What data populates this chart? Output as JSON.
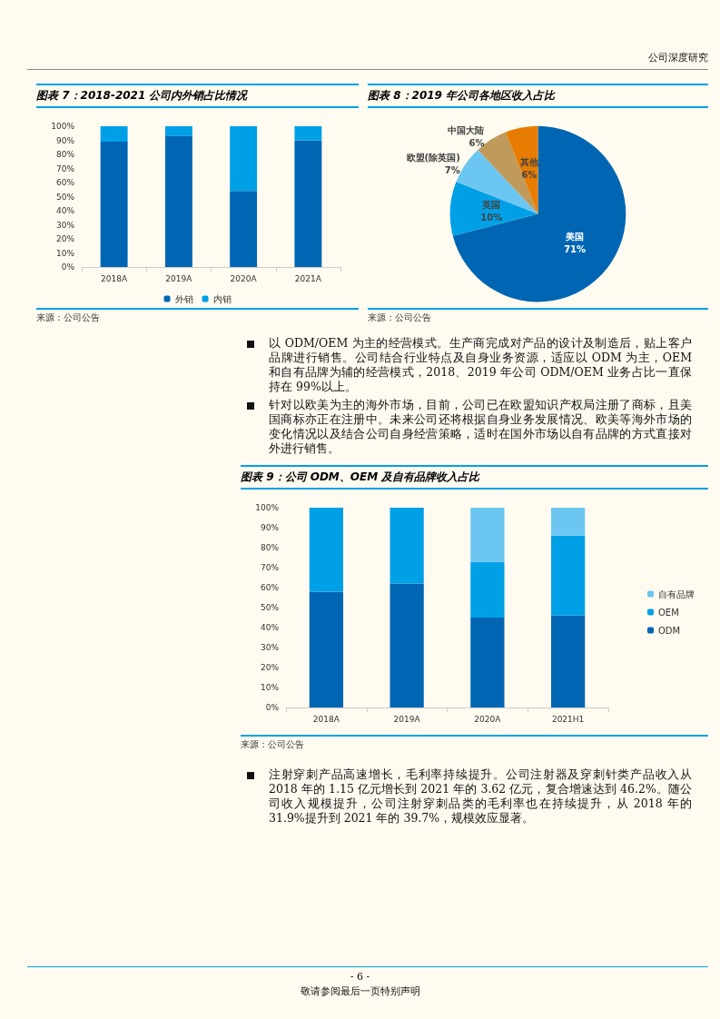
{
  "chart_data": [
    {
      "type": "bar",
      "title": "图表 7：2018-2021 公司内外销占比情况",
      "categories": [
        "2018A",
        "2019A",
        "2020A",
        "2021A"
      ],
      "stacked": true,
      "series": [
        {
          "name": "外销",
          "color": "#0066b3",
          "values": [
            89,
            93,
            54,
            90
          ]
        },
        {
          "name": "内销",
          "color": "#00a0e6",
          "values": [
            11,
            7,
            46,
            10
          ]
        }
      ],
      "ylim": [
        0,
        100
      ],
      "yticks": [
        {
          "value": 0,
          "label": "0%"
        },
        {
          "value": 10,
          "label": "10%"
        },
        {
          "value": 20,
          "label": "20%"
        },
        {
          "value": 30,
          "label": "30%"
        },
        {
          "value": 40,
          "label": "40%"
        },
        {
          "value": 50,
          "label": "50%"
        },
        {
          "value": 60,
          "label": "60%"
        },
        {
          "value": 70,
          "label": "70%"
        },
        {
          "value": 80,
          "label": "80%"
        },
        {
          "value": 90,
          "label": "90%"
        },
        {
          "value": 100,
          "label": "100%"
        }
      ],
      "grid": false,
      "legend": "bottom",
      "annotations": [
        "来源：公司公告"
      ]
    },
    {
      "type": "pie",
      "title": "图表 8：2019 年公司各地区收入占比",
      "categories": [
        "美国",
        "英国",
        "欧盟(除英国)",
        "中国大陆",
        "其他"
      ],
      "values": [
        71,
        10,
        7,
        6,
        6
      ],
      "colors": [
        "#0066b3",
        "#00a0e6",
        "#6cc6f2",
        "#c09a5a",
        "#e87c00"
      ],
      "value_labels": [
        "71%",
        "10%",
        "7%",
        "6%",
        "6%"
      ],
      "annotations": [
        "来源：公司公告"
      ]
    },
    {
      "type": "bar",
      "title": "图表 9：公司 ODM、OEM 及自有品牌收入占比",
      "categories": [
        "2018A",
        "2019A",
        "2020A",
        "2021H1"
      ],
      "stacked": true,
      "series": [
        {
          "name": "ODM",
          "color": "#0066b3",
          "values": [
            58,
            62,
            45,
            46
          ]
        },
        {
          "name": "OEM",
          "color": "#00a0e6",
          "values": [
            42,
            38,
            28,
            40
          ]
        },
        {
          "name": "自有品牌",
          "color": "#6cc6f2",
          "values": [
            0,
            0,
            27,
            14
          ]
        }
      ],
      "ylim": [
        0,
        100
      ],
      "yticks": [
        {
          "value": 0,
          "label": "0%"
        },
        {
          "value": 10,
          "label": "10%"
        },
        {
          "value": 20,
          "label": "20%"
        },
        {
          "value": 30,
          "label": "30%"
        },
        {
          "value": 40,
          "label": "40%"
        },
        {
          "value": 50,
          "label": "50%"
        },
        {
          "value": 60,
          "label": "60%"
        },
        {
          "value": 70,
          "label": "70%"
        },
        {
          "value": 80,
          "label": "80%"
        },
        {
          "value": 90,
          "label": "90%"
        },
        {
          "value": 100,
          "label": "100%"
        }
      ],
      "grid": false,
      "legend": "right",
      "annotations": [
        "来源：公司公告"
      ]
    },
    {
      "type": "other",
      "annotations": [
        "公司深度研究",
        "以 ODM/OEM 为主的经营模式。生产商完成对产品的设计及制造后，贴上客户品牌进行销售。公司结合行业特点及自身业务资源，适应以 ODM 为主，OEM 和自有品牌为辅的经营模式，2018、2019 年公司 ODM/OEM 业务占比一直保持在 99%以上。",
        "针对以欧美为主的海外市场，目前，公司已在欧盟知识产权局注册了商标，且美国商标亦正在注册中。未来公司还将根据自身业务发展情况、欧美等海外市场的变化情况以及结合公司自身经营策略，适时在国外市场以自有品牌的方式直接对外进行销售。",
        "注射穿刺产品高速增长，毛利率持续提升。公司注射器及穿刺针类产品收入从 2018 年的 1.15 亿元增长到 2021 年的 3.62 亿元，复合增速达到 46.2%。随公司收入规模提升，公司注射穿刺品类的毛利率也在持续提升，从 2018 年的 31.9%提升到 2021 年的 39.7%，规模效应显著。",
        "- 6 -",
        "敬请参阅最后一页特别声明"
      ]
    }
  ]
}
